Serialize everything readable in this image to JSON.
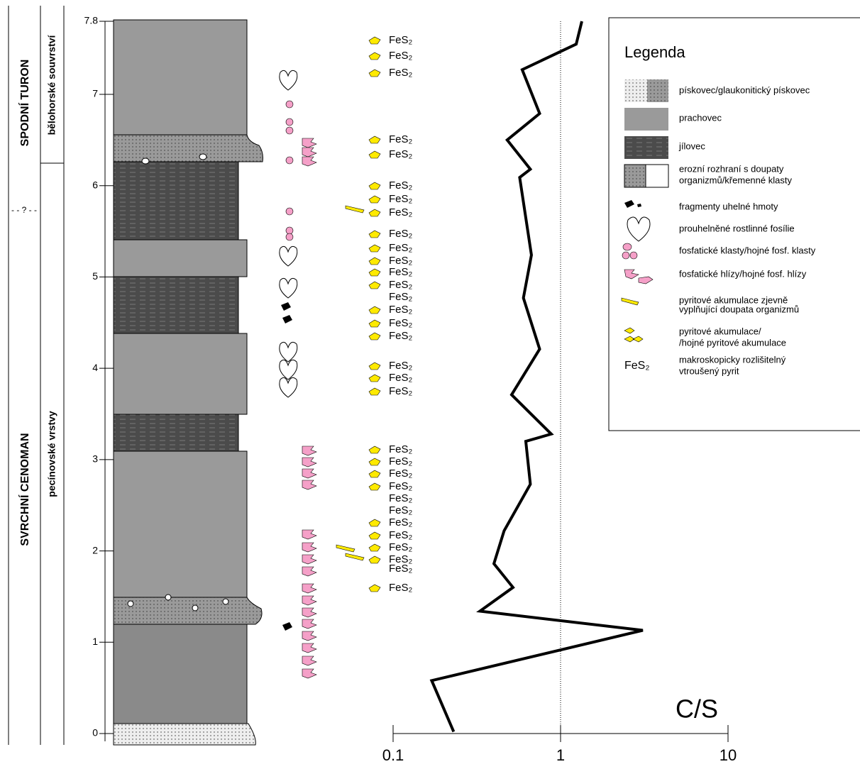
{
  "chart_data": {
    "type": "line",
    "log_x": true,
    "x_label": "C/S",
    "xlim": [
      0.1,
      10
    ],
    "xticks": [
      0.1,
      1,
      10
    ],
    "reference_x": 1,
    "ylim": [
      0,
      7.8
    ],
    "yticks": [
      0,
      1,
      2,
      3,
      4,
      5,
      6,
      7,
      7.8
    ],
    "color": "#000000",
    "x": [
      0.23,
      0.17,
      3.1,
      0.33,
      0.52,
      0.4,
      0.46,
      0.66,
      0.62,
      0.88,
      0.51,
      0.75,
      0.6,
      0.67,
      0.57,
      0.66,
      0.48,
      0.75,
      0.59,
      1.24,
      1.34
    ],
    "y": [
      0.02,
      0.58,
      1.13,
      1.34,
      1.6,
      1.86,
      2.22,
      2.73,
      3.2,
      3.28,
      3.71,
      4.21,
      4.77,
      5.24,
      6.09,
      6.18,
      6.5,
      6.79,
      7.27,
      7.55,
      7.8
    ]
  },
  "stratigraphy": {
    "stages": [
      "SPODNÍ TURON",
      "SVRCHNÍ CENOMAN"
    ],
    "units": [
      "bělohorské souvrství",
      "pecínovské vrstvy"
    ],
    "boundary": "- - ? - -"
  },
  "pyrite_labels": [
    "FeS₂",
    "FeS₂",
    "FeS₂",
    "FeS₂",
    "FeS₂",
    "FeS₂",
    "FeS₂",
    "FeS₂",
    "FeS₂",
    "FeS₂",
    "FeS₂",
    "FeS₂",
    "FeS₂",
    "FeS₂",
    "FeS₂",
    "FeS₂",
    "FeS₂",
    "FeS₂",
    "FeS₂",
    "FeS₂",
    "FeS₂",
    "FeS₂",
    "FeS₂",
    "FeS₂",
    "FeS₂",
    "FeS₂",
    "FeS₂",
    "FeS₂",
    "FeS₂",
    "FeS₂",
    "FeS₂",
    "FeS₂"
  ],
  "legend": {
    "title": "Legenda",
    "items": [
      [
        "pískovec/glaukonitický pískovec"
      ],
      [
        "prachovec"
      ],
      [
        "jílovec"
      ],
      [
        "erozní rozhraní s doupaty",
        "organizmů/křemenné klasty"
      ],
      [
        "fragmenty uhelné hmoty"
      ],
      [
        "prouhelněné rostlinné fosílie"
      ],
      [
        "fosfatické klasty/hojné fosf. klasty"
      ],
      [
        "fosfatické hlízy/hojné fosf. hlízy"
      ],
      [
        "pyritové akumulace zjevně",
        "vyplňující doupata organizmů"
      ],
      [
        "pyritové akumulace/",
        "/hojné pyritové akumulace"
      ],
      [
        "makroskopicky rozlišitelný",
        "vtroušený pyrit"
      ]
    ],
    "symbol_text": "FeS₂"
  }
}
